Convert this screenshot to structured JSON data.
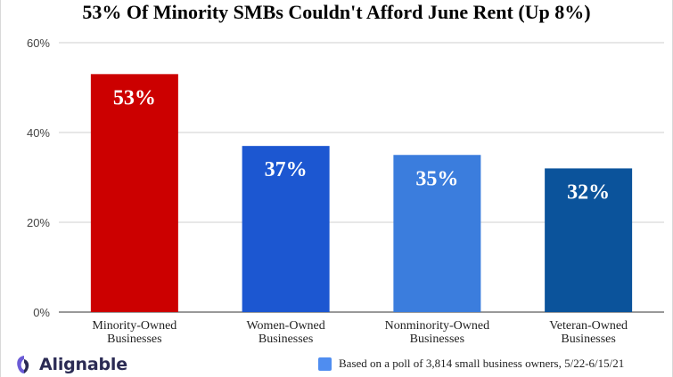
{
  "chart_data": {
    "type": "bar",
    "title": "53% Of Minority SMBs Couldn't Afford June Rent (Up 8%)",
    "categories": [
      [
        "Minority-Owned",
        "Businesses"
      ],
      [
        "Women-Owned",
        "Businesses"
      ],
      [
        "Nonminority-Owned",
        "Businesses"
      ],
      [
        "Veteran-Owned",
        "Businesses"
      ]
    ],
    "values": [
      53,
      37,
      35,
      32
    ],
    "data_labels": [
      "53%",
      "37%",
      "35%",
      "32%"
    ],
    "bar_colors": [
      "#cc0000",
      "#1c57d1",
      "#3b7ddd",
      "#0b539b"
    ],
    "ylim": [
      0,
      60
    ],
    "yticks": [
      0,
      20,
      40,
      60
    ],
    "ytick_labels": [
      "0%",
      "20%",
      "40%",
      "60%"
    ],
    "grid": true,
    "legend": "none"
  },
  "footnote": {
    "text": "Based on a poll of 3,814 small business owners, 5/22-6/15/21",
    "swatch_color": "#4f8df0"
  },
  "brand": {
    "name": "Alignable",
    "icon": "alignable-logo-icon"
  }
}
